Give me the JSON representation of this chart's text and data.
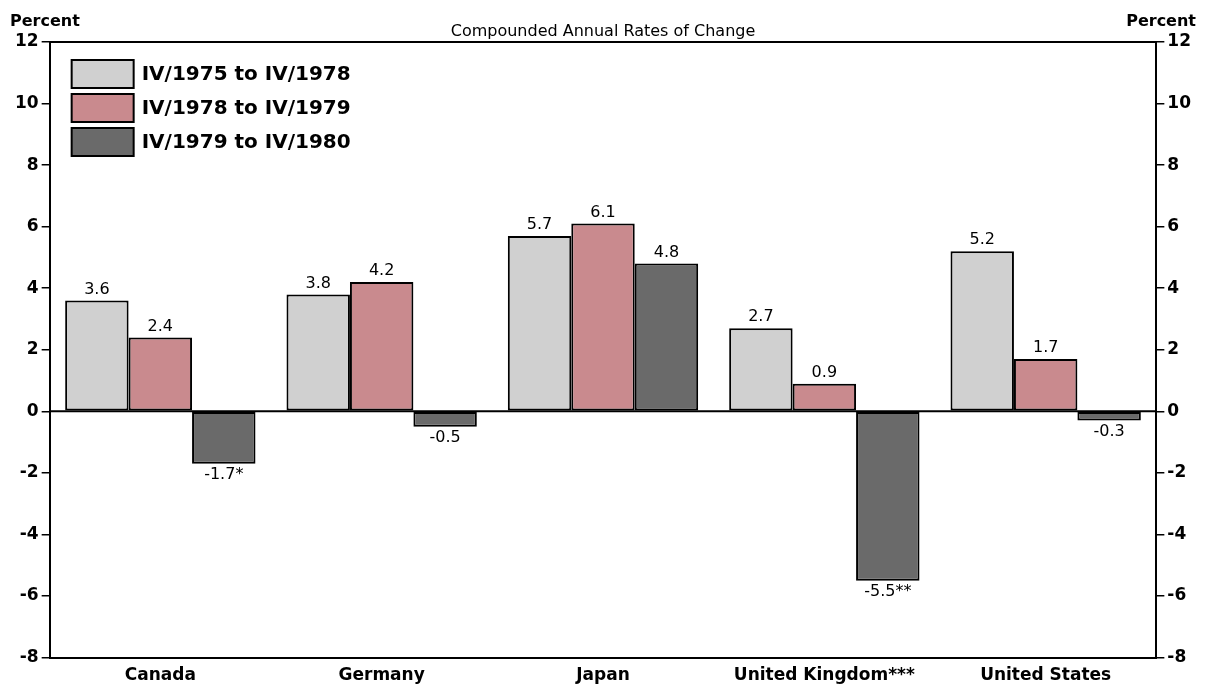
{
  "chart_data": {
    "type": "bar",
    "title": "Compounded Annual Rates of Change",
    "ylabel": "Percent",
    "y2label": "Percent",
    "categories": [
      "Canada",
      "Germany",
      "Japan",
      "United Kingdom***",
      "United States"
    ],
    "series": [
      {
        "name": "IV/1975 to IV/1978",
        "color": "#d0d0d0",
        "values": [
          3.6,
          3.8,
          5.7,
          2.7,
          5.2
        ],
        "value_labels": [
          "3.6",
          "3.8",
          "5.7",
          "2.7",
          "5.2"
        ]
      },
      {
        "name": "IV/1978 to IV/1979",
        "color": "#c98a8e",
        "values": [
          2.4,
          4.2,
          6.1,
          0.9,
          1.7
        ],
        "value_labels": [
          "2.4",
          "4.2",
          "6.1",
          "0.9",
          "1.7"
        ]
      },
      {
        "name": "IV/1979 to IV/1980",
        "color": "#6a6a6a",
        "values": [
          -1.7,
          -0.5,
          4.8,
          -5.5,
          -0.3
        ],
        "value_labels": [
          "-1.7*",
          "-0.5",
          "4.8",
          "-5.5**",
          "-0.3"
        ]
      }
    ],
    "ylim": [
      -8,
      12
    ],
    "yticks": [
      -8,
      -6,
      -4,
      -2,
      0,
      2,
      4,
      6,
      8,
      10,
      12
    ],
    "y2lim": [
      -8,
      12
    ],
    "y2ticks": [
      -8,
      -6,
      -4,
      -2,
      0,
      2,
      4,
      6,
      8,
      10,
      12
    ],
    "ref_lines": [
      {
        "axis": "y",
        "value": 0,
        "color": "#000000"
      }
    ],
    "legend": "top left"
  }
}
